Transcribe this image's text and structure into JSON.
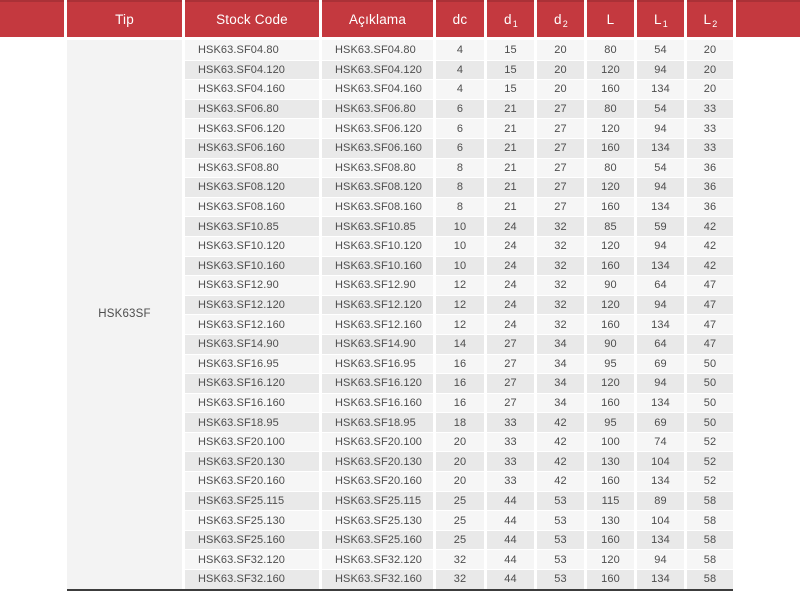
{
  "table": {
    "tip_group": "HSK63SF",
    "headers": {
      "tip": "Tip",
      "stock_code": "Stock Code",
      "aciklama": "Açıklama",
      "dc": "dc",
      "d1_base": "d",
      "d1_sub": "1",
      "d2_base": "d",
      "d2_sub": "2",
      "l": "L",
      "l1_base": "L",
      "l1_sub": "1",
      "l2_base": "L",
      "l2_sub": "2"
    },
    "rows": [
      {
        "stock_code": "HSK63.SF04.80",
        "aciklama": "HSK63.SF04.80",
        "dc": 4,
        "d1": 15,
        "d2": 20,
        "l": 80,
        "l1": 54,
        "l2": 20
      },
      {
        "stock_code": "HSK63.SF04.120",
        "aciklama": "HSK63.SF04.120",
        "dc": 4,
        "d1": 15,
        "d2": 20,
        "l": 120,
        "l1": 94,
        "l2": 20
      },
      {
        "stock_code": "HSK63.SF04.160",
        "aciklama": "HSK63.SF04.160",
        "dc": 4,
        "d1": 15,
        "d2": 20,
        "l": 160,
        "l1": 134,
        "l2": 20
      },
      {
        "stock_code": "HSK63.SF06.80",
        "aciklama": "HSK63.SF06.80",
        "dc": 6,
        "d1": 21,
        "d2": 27,
        "l": 80,
        "l1": 54,
        "l2": 33
      },
      {
        "stock_code": "HSK63.SF06.120",
        "aciklama": "HSK63.SF06.120",
        "dc": 6,
        "d1": 21,
        "d2": 27,
        "l": 120,
        "l1": 94,
        "l2": 33
      },
      {
        "stock_code": "HSK63.SF06.160",
        "aciklama": "HSK63.SF06.160",
        "dc": 6,
        "d1": 21,
        "d2": 27,
        "l": 160,
        "l1": 134,
        "l2": 33
      },
      {
        "stock_code": "HSK63.SF08.80",
        "aciklama": "HSK63.SF08.80",
        "dc": 8,
        "d1": 21,
        "d2": 27,
        "l": 80,
        "l1": 54,
        "l2": 36
      },
      {
        "stock_code": "HSK63.SF08.120",
        "aciklama": "HSK63.SF08.120",
        "dc": 8,
        "d1": 21,
        "d2": 27,
        "l": 120,
        "l1": 94,
        "l2": 36
      },
      {
        "stock_code": "HSK63.SF08.160",
        "aciklama": "HSK63.SF08.160",
        "dc": 8,
        "d1": 21,
        "d2": 27,
        "l": 160,
        "l1": 134,
        "l2": 36
      },
      {
        "stock_code": "HSK63.SF10.85",
        "aciklama": "HSK63.SF10.85",
        "dc": 10,
        "d1": 24,
        "d2": 32,
        "l": 85,
        "l1": 59,
        "l2": 42
      },
      {
        "stock_code": "HSK63.SF10.120",
        "aciklama": "HSK63.SF10.120",
        "dc": 10,
        "d1": 24,
        "d2": 32,
        "l": 120,
        "l1": 94,
        "l2": 42
      },
      {
        "stock_code": "HSK63.SF10.160",
        "aciklama": "HSK63.SF10.160",
        "dc": 10,
        "d1": 24,
        "d2": 32,
        "l": 160,
        "l1": 134,
        "l2": 42
      },
      {
        "stock_code": "HSK63.SF12.90",
        "aciklama": "HSK63.SF12.90",
        "dc": 12,
        "d1": 24,
        "d2": 32,
        "l": 90,
        "l1": 64,
        "l2": 47
      },
      {
        "stock_code": "HSK63.SF12.120",
        "aciklama": "HSK63.SF12.120",
        "dc": 12,
        "d1": 24,
        "d2": 32,
        "l": 120,
        "l1": 94,
        "l2": 47
      },
      {
        "stock_code": "HSK63.SF12.160",
        "aciklama": "HSK63.SF12.160",
        "dc": 12,
        "d1": 24,
        "d2": 32,
        "l": 160,
        "l1": 134,
        "l2": 47
      },
      {
        "stock_code": "HSK63.SF14.90",
        "aciklama": "HSK63.SF14.90",
        "dc": 14,
        "d1": 27,
        "d2": 34,
        "l": 90,
        "l1": 64,
        "l2": 47
      },
      {
        "stock_code": "HSK63.SF16.95",
        "aciklama": "HSK63.SF16.95",
        "dc": 16,
        "d1": 27,
        "d2": 34,
        "l": 95,
        "l1": 69,
        "l2": 50
      },
      {
        "stock_code": "HSK63.SF16.120",
        "aciklama": "HSK63.SF16.120",
        "dc": 16,
        "d1": 27,
        "d2": 34,
        "l": 120,
        "l1": 94,
        "l2": 50
      },
      {
        "stock_code": "HSK63.SF16.160",
        "aciklama": "HSK63.SF16.160",
        "dc": 16,
        "d1": 27,
        "d2": 34,
        "l": 160,
        "l1": 134,
        "l2": 50
      },
      {
        "stock_code": "HSK63.SF18.95",
        "aciklama": "HSK63.SF18.95",
        "dc": 18,
        "d1": 33,
        "d2": 42,
        "l": 95,
        "l1": 69,
        "l2": 50
      },
      {
        "stock_code": "HSK63.SF20.100",
        "aciklama": "HSK63.SF20.100",
        "dc": 20,
        "d1": 33,
        "d2": 42,
        "l": 100,
        "l1": 74,
        "l2": 52
      },
      {
        "stock_code": "HSK63.SF20.130",
        "aciklama": "HSK63.SF20.130",
        "dc": 20,
        "d1": 33,
        "d2": 42,
        "l": 130,
        "l1": 104,
        "l2": 52
      },
      {
        "stock_code": "HSK63.SF20.160",
        "aciklama": "HSK63.SF20.160",
        "dc": 20,
        "d1": 33,
        "d2": 42,
        "l": 160,
        "l1": 134,
        "l2": 52
      },
      {
        "stock_code": "HSK63.SF25.115",
        "aciklama": "HSK63.SF25.115",
        "dc": 25,
        "d1": 44,
        "d2": 53,
        "l": 115,
        "l1": 89,
        "l2": 58
      },
      {
        "stock_code": "HSK63.SF25.130",
        "aciklama": "HSK63.SF25.130",
        "dc": 25,
        "d1": 44,
        "d2": 53,
        "l": 130,
        "l1": 104,
        "l2": 58
      },
      {
        "stock_code": "HSK63.SF25.160",
        "aciklama": "HSK63.SF25.160",
        "dc": 25,
        "d1": 44,
        "d2": 53,
        "l": 160,
        "l1": 134,
        "l2": 58
      },
      {
        "stock_code": "HSK63.SF32.120",
        "aciklama": "HSK63.SF32.120",
        "dc": 32,
        "d1": 44,
        "d2": 53,
        "l": 120,
        "l1": 94,
        "l2": 58
      },
      {
        "stock_code": "HSK63.SF32.160",
        "aciklama": "HSK63.SF32.160",
        "dc": 32,
        "d1": 44,
        "d2": 53,
        "l": 160,
        "l1": 134,
        "l2": 58
      }
    ]
  },
  "colors": {
    "header_red": "#c4393f",
    "header_top_line": "#aa3137",
    "row_light": "#f6f6f6",
    "row_alt": "#e9e9e9",
    "tip_column_bg": "#f3f3f3",
    "body_text": "#4d4d4d",
    "header_text": "#ffffff",
    "bottom_rule": "#3c3c3c"
  }
}
